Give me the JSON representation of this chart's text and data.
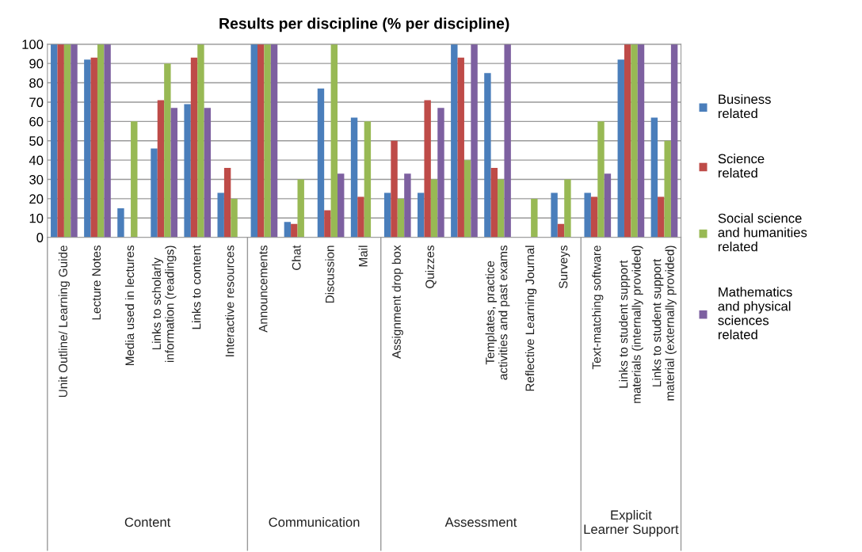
{
  "chart_data": {
    "type": "bar",
    "title": "Results per discipline (% per discipline)",
    "categories": [
      "Unit Outline/ Learning Guide",
      "Lecture Notes",
      "Media used in lectures",
      "Links to scholarly information (readings)",
      "Links to content",
      "Interactive resources",
      "Announcements",
      "Chat",
      "Discussion",
      "Mail",
      "Assignment drop box",
      "Quizzes",
      null,
      "Templates, practice activities and past exams",
      "Reflective Learning Journal",
      "Surveys",
      "Text-matching software",
      "Links to student support materials (internally provided)",
      "Links to student support material (externally provided)"
    ],
    "series": [
      {
        "name": "Business related",
        "color": "#4a7ebb",
        "values": [
          100,
          92,
          15,
          46,
          69,
          23,
          100,
          8,
          77,
          62,
          23,
          23,
          100,
          85,
          0,
          23,
          23,
          92,
          62
        ]
      },
      {
        "name": "Science related",
        "color": "#be4b48",
        "values": [
          100,
          93,
          0,
          71,
          93,
          36,
          100,
          7,
          14,
          21,
          50,
          71,
          93,
          36,
          0,
          7,
          21,
          100,
          21
        ]
      },
      {
        "name": "Social science and humanities related",
        "color": "#98b954",
        "values": [
          100,
          100,
          60,
          90,
          100,
          20,
          100,
          30,
          100,
          60,
          20,
          30,
          40,
          30,
          20,
          30,
          60,
          100,
          50
        ]
      },
      {
        "name": "Mathematics and physical sciences related",
        "color": "#7d60a0",
        "values": [
          100,
          100,
          0,
          67,
          67,
          0,
          100,
          0,
          33,
          0,
          33,
          67,
          100,
          100,
          0,
          0,
          33,
          100,
          100
        ]
      }
    ],
    "annotations": [
      "Content",
      "Communication",
      "Assessment",
      "Explicit Learner Support"
    ],
    "ylim": [
      0,
      100
    ],
    "yticks": [
      0,
      10,
      20,
      30,
      40,
      50,
      60,
      70,
      80,
      90,
      100
    ],
    "grid": "y",
    "legend": "right"
  }
}
